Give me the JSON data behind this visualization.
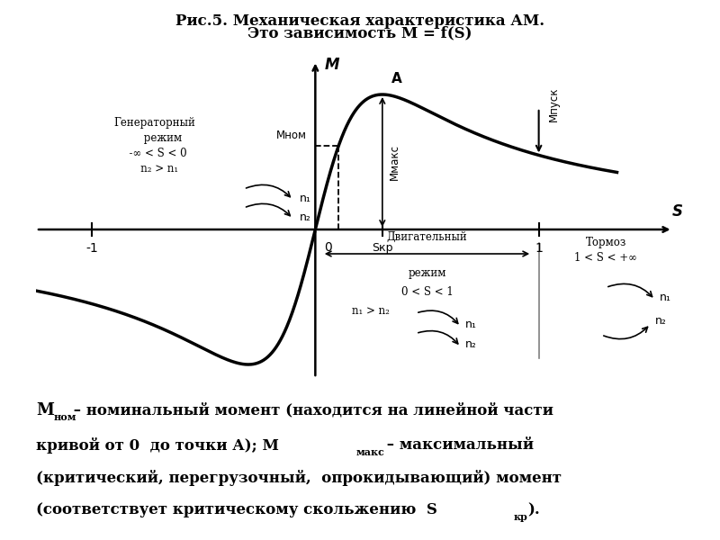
{
  "title_line1": "Рис.5. Механическая характеристика АМ.",
  "title_line2": "Это зависимость M = f(S)",
  "bg_color": "#ffffff",
  "s_kp": 0.3,
  "M_max_val": 1.0,
  "M_nom_val": 0.62,
  "M_pusk_val": 0.28,
  "xlim": [
    -1.25,
    1.65
  ],
  "ylim": [
    -1.1,
    1.3
  ]
}
